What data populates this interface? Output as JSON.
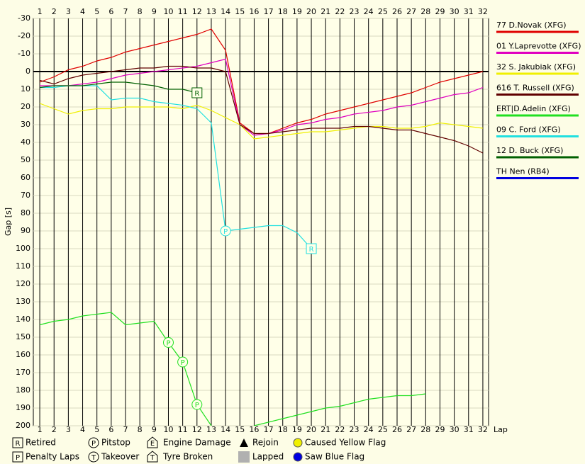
{
  "chart_data": {
    "type": "line",
    "y_label": "Gap [s]",
    "x_label": "Lap",
    "x": [
      1,
      2,
      3,
      4,
      5,
      6,
      7,
      8,
      9,
      10,
      11,
      12,
      13,
      14,
      15,
      16,
      17,
      18,
      19,
      20,
      21,
      22,
      23,
      24,
      25,
      26,
      27,
      28,
      29,
      30,
      31,
      32
    ],
    "xlim": [
      0.55,
      32.4
    ],
    "xticks": [
      1,
      2,
      3,
      4,
      5,
      6,
      7,
      8,
      9,
      10,
      11,
      12,
      13,
      14,
      15,
      16,
      17,
      18,
      19,
      20,
      21,
      22,
      23,
      24,
      25,
      26,
      27,
      28,
      29,
      30,
      31,
      32
    ],
    "ylim": [
      -30,
      200
    ],
    "y_inverted": true,
    "yticks": [
      -30,
      -20,
      -10,
      0,
      10,
      20,
      30,
      40,
      50,
      60,
      70,
      80,
      90,
      100,
      110,
      120,
      130,
      140,
      150,
      160,
      170,
      180,
      190,
      200
    ],
    "grid": true,
    "zero_line": true,
    "legend": "right",
    "series": [
      {
        "name": "77 D.Novak (XFG)",
        "color": "#e00000",
        "values": [
          6,
          3,
          -1,
          -3,
          -6,
          -8,
          -11,
          -13,
          -15,
          -17,
          -19,
          -21,
          -24,
          -12,
          29,
          35,
          35,
          32,
          29,
          27,
          24,
          22,
          20,
          18,
          16,
          14,
          12,
          9,
          6,
          4,
          2,
          0
        ]
      },
      {
        "name": "01 Y.Laprevotte (XFG)",
        "color": "#e000c0",
        "values": [
          8,
          8,
          8,
          7,
          6,
          4,
          2,
          1,
          0,
          -1,
          -2,
          -3,
          -5,
          -7,
          30,
          36,
          35,
          33,
          30,
          29,
          27,
          26,
          24,
          23,
          22,
          20,
          19,
          17,
          15,
          13,
          12,
          9
        ]
      },
      {
        "name": "32 S. Jakubiak (XFG)",
        "color": "#f0f000",
        "values": [
          18,
          21,
          24,
          22,
          21,
          21,
          20,
          20,
          20,
          20,
          21,
          19,
          22,
          26,
          30,
          38,
          37,
          36,
          35,
          34,
          34,
          33,
          32,
          31,
          31,
          32,
          32,
          31,
          29,
          30,
          31,
          32
        ]
      },
      {
        "name": "616 T. Russell (XFG)",
        "color": "#600000",
        "values": [
          5,
          7,
          4,
          2,
          1,
          0,
          -1,
          -2,
          -2,
          -3,
          -3,
          -2,
          -2,
          0,
          30,
          35,
          35,
          34,
          33,
          32,
          32,
          32,
          31,
          31,
          32,
          33,
          33,
          35,
          37,
          39,
          42,
          46
        ]
      },
      {
        "name": "ERT|D.Adelin (XFG)",
        "color": "#20e020",
        "values": [
          143,
          141,
          140,
          138,
          137,
          136,
          143,
          142,
          141,
          153,
          164,
          188,
          200,
          null,
          null,
          200,
          198,
          196,
          194,
          192,
          190,
          189,
          187,
          185,
          184,
          183,
          183,
          182,
          null,
          null,
          null,
          null
        ],
        "events": [
          {
            "x": 10,
            "value": 153,
            "symbol": "P",
            "shape": "circle"
          },
          {
            "x": 11,
            "value": 164,
            "symbol": "P",
            "shape": "circle"
          },
          {
            "x": 12,
            "value": 188,
            "symbol": "P",
            "shape": "circle"
          }
        ]
      },
      {
        "name": "09 C. Ford (XFG)",
        "color": "#20e0e0",
        "values": [
          9,
          9,
          8,
          8,
          8,
          16,
          15,
          15,
          17,
          18,
          19,
          21,
          29,
          90,
          89,
          88,
          87,
          87,
          91,
          100,
          null,
          null,
          null,
          null,
          null,
          null,
          null,
          null,
          null,
          null,
          null,
          null
        ],
        "events": [
          {
            "x": 14,
            "value": 90,
            "symbol": "P",
            "shape": "circle"
          },
          {
            "x": 20,
            "value": 100,
            "symbol": "R",
            "shape": "square"
          }
        ]
      },
      {
        "name": "12 D. Buck (XFG)",
        "color": "#006000",
        "values": [
          9,
          8,
          8,
          8,
          7,
          6,
          6,
          7,
          8,
          10,
          10,
          12,
          null,
          null,
          null,
          null,
          null,
          null,
          null,
          null,
          null,
          null,
          null,
          null,
          null,
          null,
          null,
          null,
          null,
          null,
          null,
          null
        ],
        "events": [
          {
            "x": 12,
            "value": 12,
            "symbol": "R",
            "shape": "square"
          }
        ]
      },
      {
        "name": "TH Nen (RB4)",
        "color": "#0000e0",
        "values": [
          null,
          null,
          null,
          null,
          null,
          null,
          null,
          null,
          null,
          null,
          null,
          null,
          null,
          null,
          null,
          null,
          null,
          null,
          null,
          null,
          null,
          null,
          null,
          null,
          null,
          null,
          null,
          null,
          null,
          null,
          null,
          null
        ]
      }
    ],
    "key": [
      {
        "symbol": "R",
        "label": "Retired",
        "shape": "square"
      },
      {
        "symbol": "P",
        "label": "Pitstop",
        "shape": "circle"
      },
      {
        "symbol": "E",
        "label": "Engine Damage",
        "shape": "house"
      },
      {
        "label": "Rejoin",
        "shape": "triangle",
        "color": "#000000"
      },
      {
        "label": "Caused Yellow Flag",
        "shape": "dot",
        "color": "#f0f000"
      },
      {
        "symbol": "P",
        "label": "Penalty Laps",
        "shape": "square"
      },
      {
        "symbol": "T",
        "label": "Takeover",
        "shape": "circle"
      },
      {
        "symbol": "T",
        "label": "Tyre Broken",
        "shape": "house"
      },
      {
        "label": "Lapped",
        "shape": "block",
        "color": "#b0b0b0"
      },
      {
        "label": "Saw Blue Flag",
        "shape": "dot",
        "color": "#0000e0"
      }
    ]
  }
}
